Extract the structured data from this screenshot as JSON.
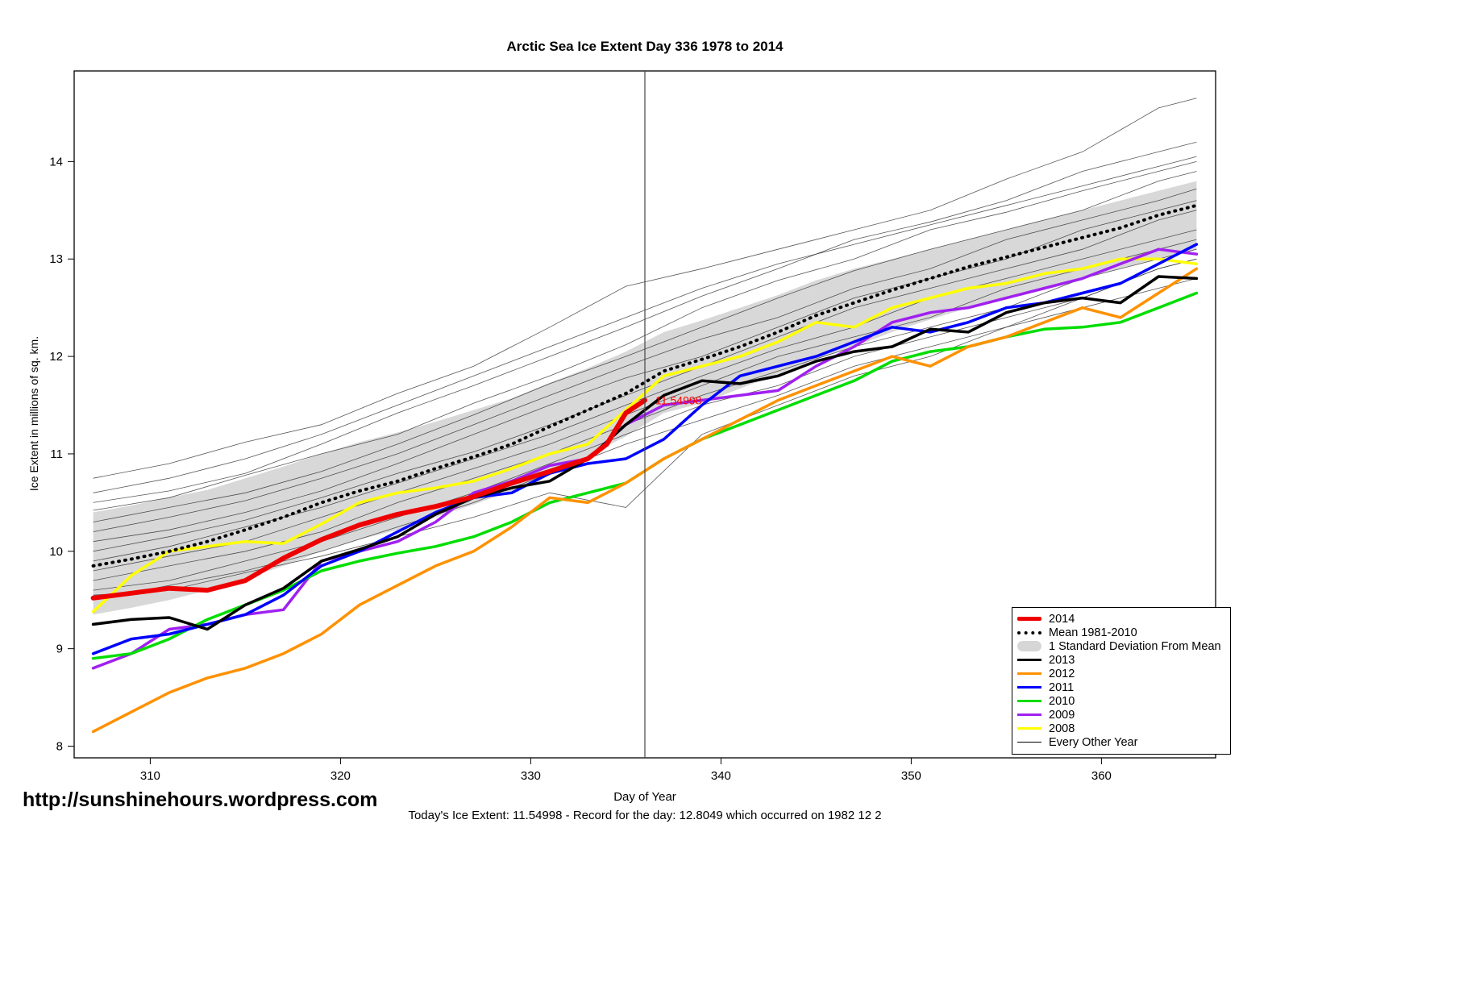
{
  "title": "Arctic Sea Ice Extent Day 336 1978 to 2014",
  "footer": {
    "url": "http://sunshinehours.wordpress.com",
    "xlabel": "Day of Year",
    "status": "Today's Ice Extent: 11.54998  - Record for the day: 12.8049 which occurred on 1982 12 2"
  },
  "legend": {
    "items": [
      {
        "label": "2014",
        "type": "thick",
        "color": "#ee0000"
      },
      {
        "label": "Mean 1981-2010",
        "type": "dashed",
        "color": "#000000"
      },
      {
        "label": "1 Standard Deviation From Mean",
        "type": "band",
        "color": "#d6d6d6"
      },
      {
        "label": "2013",
        "type": "line",
        "color": "#000000"
      },
      {
        "label": "2012",
        "type": "line",
        "color": "#ff9100"
      },
      {
        "label": "2011",
        "type": "line",
        "color": "#0000ff"
      },
      {
        "label": "2010",
        "type": "line",
        "color": "#00dd00"
      },
      {
        "label": "2009",
        "type": "line",
        "color": "#a020f0"
      },
      {
        "label": "2008",
        "type": "line",
        "color": "#ffff00"
      },
      {
        "label": "Every Other Year",
        "type": "thin",
        "color": "#000000"
      }
    ]
  },
  "chart_data": {
    "type": "line",
    "title": "Arctic Sea Ice Extent Day 336 1978 to 2014",
    "xlabel": "Day of Year",
    "ylabel": "Ice Extent in millions of sq. km.",
    "x_ticks": [
      310,
      320,
      330,
      340,
      350,
      360
    ],
    "y_ticks": [
      8,
      9,
      10,
      11,
      12,
      13,
      14
    ],
    "xlim": [
      306,
      366
    ],
    "ylim": [
      7.88,
      14.93
    ],
    "vline_x": 336,
    "annotation": {
      "text": "11.54998",
      "x": 336.3,
      "y": 11.55,
      "color": "#ff0000"
    },
    "x": [
      307,
      309,
      311,
      313,
      315,
      317,
      319,
      321,
      323,
      325,
      327,
      329,
      331,
      333,
      335,
      337,
      339,
      341,
      343,
      345,
      347,
      349,
      351,
      353,
      355,
      357,
      359,
      361,
      363,
      365
    ],
    "band": {
      "name": "1 Standard Deviation From Mean",
      "color": "#d6d6d6",
      "upper": [
        10.4,
        10.47,
        10.55,
        10.63,
        10.75,
        10.87,
        11.0,
        11.12,
        11.22,
        11.33,
        11.45,
        11.57,
        11.73,
        11.88,
        12.05,
        12.25,
        12.37,
        12.5,
        12.63,
        12.78,
        12.9,
        13.0,
        13.1,
        13.2,
        13.3,
        13.4,
        13.5,
        13.6,
        13.7,
        13.8
      ],
      "lower": [
        9.35,
        9.42,
        9.5,
        9.6,
        9.72,
        9.85,
        10.0,
        10.12,
        10.22,
        10.35,
        10.48,
        10.62,
        10.78,
        10.98,
        11.18,
        11.42,
        11.52,
        11.67,
        11.82,
        11.97,
        12.1,
        12.25,
        12.38,
        12.5,
        12.6,
        12.7,
        12.8,
        12.9,
        13.0,
        13.1
      ]
    },
    "other_years": {
      "name": "Every Other Year",
      "x": [
        307,
        311,
        315,
        319,
        323,
        327,
        331,
        335,
        339,
        343,
        347,
        351,
        355,
        359,
        363,
        365
      ],
      "lines": [
        [
          10.75,
          10.9,
          11.12,
          11.3,
          11.62,
          11.9,
          12.3,
          12.72,
          12.9,
          13.1,
          13.3,
          13.5,
          13.82,
          14.1,
          14.55,
          14.65
        ],
        [
          10.5,
          10.62,
          10.8,
          11.1,
          11.42,
          11.7,
          12.0,
          12.3,
          12.62,
          12.9,
          13.2,
          13.38,
          13.6,
          13.9,
          14.1,
          14.2
        ],
        [
          10.42,
          10.55,
          10.78,
          11.0,
          11.2,
          11.52,
          11.8,
          12.12,
          12.5,
          12.78,
          13.0,
          13.3,
          13.48,
          13.7,
          13.9,
          14.0
        ],
        [
          10.3,
          10.45,
          10.6,
          10.82,
          11.1,
          11.4,
          11.72,
          12.0,
          12.3,
          12.6,
          12.88,
          13.1,
          13.3,
          13.5,
          13.8,
          13.9
        ],
        [
          10.2,
          10.35,
          10.52,
          10.75,
          11.0,
          11.3,
          11.6,
          11.9,
          12.18,
          12.4,
          12.7,
          12.9,
          13.2,
          13.4,
          13.6,
          13.72
        ],
        [
          10.1,
          10.22,
          10.4,
          10.62,
          10.9,
          11.2,
          11.5,
          11.78,
          12.0,
          12.3,
          12.6,
          12.8,
          13.0,
          13.3,
          13.5,
          13.6
        ],
        [
          10.0,
          10.15,
          10.32,
          10.55,
          10.8,
          11.02,
          11.3,
          11.6,
          11.9,
          12.2,
          12.5,
          12.7,
          12.9,
          13.1,
          13.4,
          13.5
        ],
        [
          9.9,
          10.05,
          10.25,
          10.45,
          10.7,
          10.95,
          11.2,
          11.5,
          11.8,
          12.08,
          12.3,
          12.6,
          12.8,
          13.0,
          13.2,
          13.3
        ],
        [
          9.8,
          9.95,
          10.1,
          10.35,
          10.6,
          10.85,
          11.1,
          11.4,
          11.7,
          12.0,
          12.2,
          12.4,
          12.7,
          12.9,
          13.1,
          13.2
        ],
        [
          9.7,
          9.85,
          10.0,
          10.2,
          10.5,
          10.75,
          11.0,
          11.3,
          11.6,
          11.85,
          12.1,
          12.3,
          12.5,
          12.8,
          13.0,
          13.1
        ],
        [
          9.6,
          9.7,
          9.9,
          10.1,
          10.35,
          10.6,
          10.9,
          11.2,
          11.5,
          11.7,
          12.0,
          12.2,
          12.4,
          12.6,
          12.9,
          13.0
        ],
        [
          9.5,
          9.65,
          9.8,
          10.0,
          10.25,
          10.5,
          10.8,
          11.1,
          11.35,
          11.6,
          11.9,
          12.1,
          12.3,
          12.5,
          12.7,
          12.8
        ],
        [
          10.6,
          10.75,
          10.95,
          11.2,
          11.5,
          11.8,
          12.1,
          12.4,
          12.7,
          12.95,
          13.15,
          13.35,
          13.55,
          13.75,
          13.95,
          14.05
        ],
        [
          9.55,
          9.6,
          9.78,
          9.95,
          10.15,
          10.35,
          10.6,
          10.45,
          11.2,
          11.5,
          11.8,
          12.0,
          12.3,
          12.6,
          12.9,
          13.0
        ]
      ]
    },
    "series": [
      {
        "name": "2008",
        "color": "#ffff00",
        "width": 3.5,
        "values": [
          9.38,
          9.75,
          10.0,
          10.05,
          10.1,
          10.08,
          10.28,
          10.5,
          10.6,
          10.65,
          10.72,
          10.85,
          11.0,
          11.1,
          11.45,
          11.8,
          11.9,
          12.0,
          12.15,
          12.35,
          12.3,
          12.5,
          12.6,
          12.7,
          12.75,
          12.85,
          12.9,
          13.0,
          13.0,
          12.95
        ]
      },
      {
        "name": "2009",
        "color": "#a020f0",
        "width": 3.5,
        "values": [
          8.8,
          8.95,
          9.2,
          9.25,
          9.35,
          9.4,
          9.9,
          10.0,
          10.1,
          10.3,
          10.6,
          10.72,
          10.88,
          10.95,
          11.3,
          11.5,
          11.55,
          11.6,
          11.65,
          11.9,
          12.1,
          12.35,
          12.45,
          12.5,
          12.6,
          12.7,
          12.8,
          12.95,
          13.1,
          13.05
        ]
      },
      {
        "name": "2010",
        "color": "#00dd00",
        "width": 3.5,
        "values": [
          8.9,
          8.95,
          9.1,
          9.3,
          9.45,
          9.6,
          9.8,
          9.9,
          9.98,
          10.05,
          10.15,
          10.3,
          10.5,
          10.6,
          10.7,
          10.95,
          11.15,
          11.3,
          11.45,
          11.6,
          11.75,
          11.95,
          12.05,
          12.1,
          12.2,
          12.28,
          12.3,
          12.35,
          12.5,
          12.65
        ]
      },
      {
        "name": "2011",
        "color": "#0000ff",
        "width": 3.5,
        "values": [
          8.95,
          9.1,
          9.15,
          9.25,
          9.35,
          9.55,
          9.85,
          10.0,
          10.2,
          10.4,
          10.55,
          10.6,
          10.8,
          10.9,
          10.95,
          11.15,
          11.5,
          11.8,
          11.9,
          12.0,
          12.15,
          12.3,
          12.25,
          12.35,
          12.5,
          12.55,
          12.65,
          12.75,
          12.95,
          13.15
        ]
      },
      {
        "name": "2012",
        "color": "#ff9100",
        "width": 3.5,
        "values": [
          8.15,
          8.35,
          8.55,
          8.7,
          8.8,
          8.95,
          9.15,
          9.45,
          9.65,
          9.85,
          10.0,
          10.25,
          10.55,
          10.5,
          10.7,
          10.95,
          11.15,
          11.35,
          11.55,
          11.7,
          11.85,
          12.0,
          11.9,
          12.1,
          12.2,
          12.35,
          12.5,
          12.4,
          12.65,
          12.9
        ]
      },
      {
        "name": "2013",
        "color": "#000000",
        "width": 3.5,
        "values": [
          9.25,
          9.3,
          9.32,
          9.2,
          9.45,
          9.62,
          9.9,
          10.02,
          10.15,
          10.38,
          10.55,
          10.65,
          10.72,
          10.95,
          11.3,
          11.6,
          11.75,
          11.72,
          11.8,
          11.95,
          12.05,
          12.1,
          12.28,
          12.25,
          12.45,
          12.55,
          12.6,
          12.55,
          12.82,
          12.8
        ]
      },
      {
        "name": "Mean 1981-2010",
        "color": "#000000",
        "width": 4,
        "dash": "1 7",
        "values": [
          9.85,
          9.92,
          10.0,
          10.1,
          10.22,
          10.35,
          10.5,
          10.62,
          10.72,
          10.85,
          10.97,
          11.1,
          11.28,
          11.45,
          11.62,
          11.85,
          11.97,
          12.1,
          12.25,
          12.42,
          12.55,
          12.68,
          12.8,
          12.92,
          13.02,
          13.12,
          13.22,
          13.32,
          13.45,
          13.55
        ]
      },
      {
        "name": "2014",
        "color": "#ee0000",
        "width": 6,
        "x": [
          307,
          309,
          311,
          313,
          315,
          317,
          319,
          321,
          323,
          325,
          327,
          329,
          331,
          333,
          334,
          335,
          336
        ],
        "values": [
          9.52,
          9.57,
          9.62,
          9.6,
          9.7,
          9.93,
          10.12,
          10.27,
          10.38,
          10.46,
          10.56,
          10.7,
          10.82,
          10.95,
          11.1,
          11.42,
          11.55
        ]
      }
    ]
  }
}
